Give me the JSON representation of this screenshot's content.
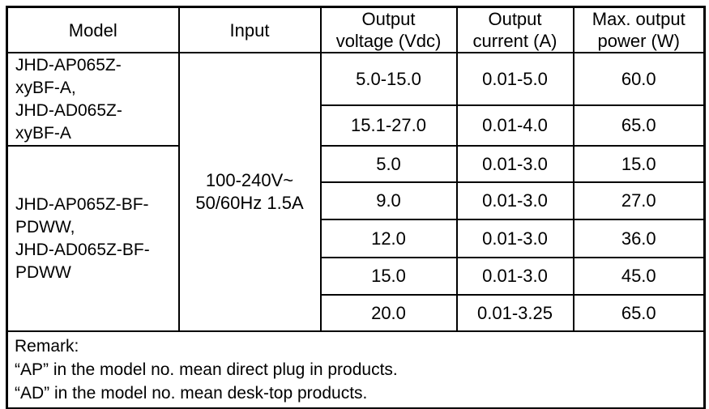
{
  "colors": {
    "ink": "#000000",
    "paper": "#ffffff"
  },
  "table": {
    "headers": [
      "Model",
      "Input",
      "Output\nvoltage (Vdc)",
      "Output\ncurrent (A)",
      "Max. output\npower (W)"
    ],
    "model_groups": [
      {
        "model": "JHD-AP065Z-\nxyBF-A,\nJHD-AD065Z-\nxyBF-A",
        "rowspan": 2
      },
      {
        "model": "JHD-AP065Z-BF-\nPDWW,\nJHD-AD065Z-BF-\nPDWW",
        "rowspan": 5
      }
    ],
    "input": "100-240V~\n50/60Hz 1.5A",
    "rows": [
      {
        "voltage": "5.0-15.0",
        "current": "0.01-5.0",
        "power": "60.0"
      },
      {
        "voltage": "15.1-27.0",
        "current": "0.01-4.0",
        "power": "65.0"
      },
      {
        "voltage": "5.0",
        "current": "0.01-3.0",
        "power": "15.0"
      },
      {
        "voltage": "9.0",
        "current": "0.01-3.0",
        "power": "27.0"
      },
      {
        "voltage": "12.0",
        "current": "0.01-3.0",
        "power": "36.0"
      },
      {
        "voltage": "15.0",
        "current": "0.01-3.0",
        "power": "45.0"
      },
      {
        "voltage": "20.0",
        "current": "0.01-3.25",
        "power": "65.0"
      }
    ],
    "remark": "Remark:\n“AP” in the model no. mean direct plug in products.\n“AD” in the model no. mean desk-top products."
  }
}
